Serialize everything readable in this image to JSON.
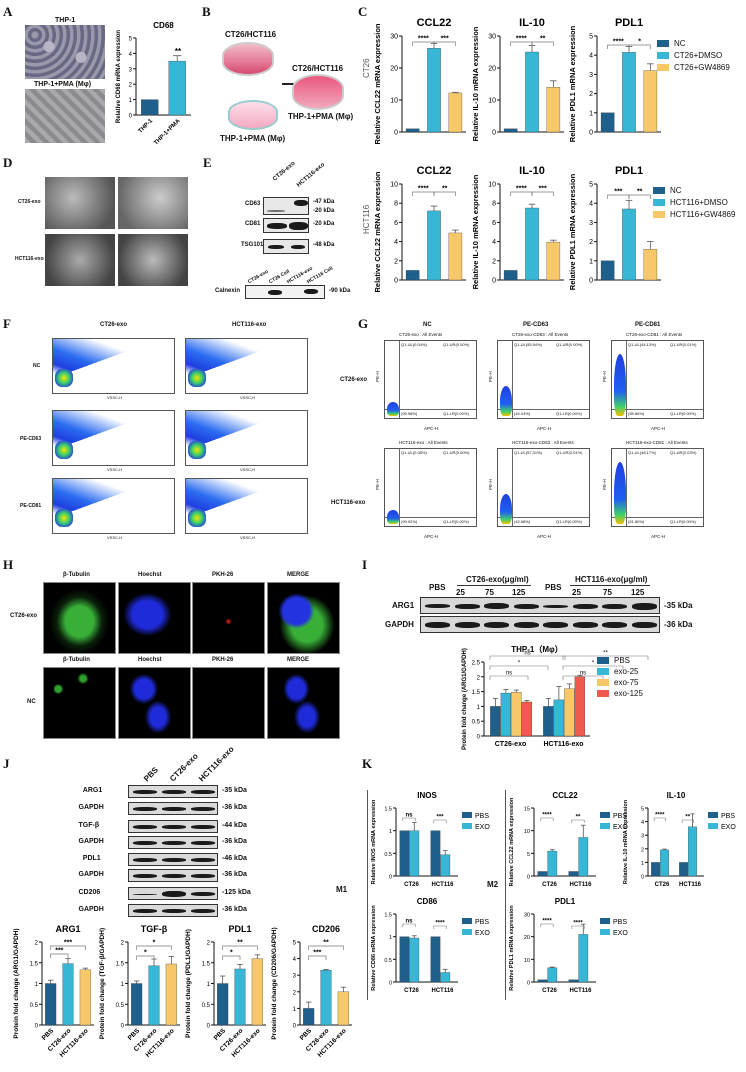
{
  "colors": {
    "nc": "#1f5f8b",
    "dmso": "#38b6d6",
    "gw": "#f7c86a",
    "exo125": "#ef5a4c",
    "ink": "#111111"
  },
  "panels": {
    "A": {
      "label": "A",
      "img_top": "THP-1",
      "img_bottom": "THP-1+PMA (Mφ)"
    },
    "B": {
      "label": "B",
      "dish_top": "CT26/HCT116",
      "dish_bottom": "THP-1+PMA (Mφ)",
      "dish_right_top": "CT26/HCT116",
      "dish_right_bottom": "THP-1+PMA (Mφ)"
    },
    "C": {
      "label": "C",
      "row1_label": "CT26",
      "row2_label": "HCT116"
    },
    "D": {
      "label": "D",
      "row1": "CT26-exo",
      "row2": "HCT116-exo"
    },
    "E": {
      "label": "E",
      "lanes_top": [
        "CT26-exo",
        "HCT116-exo"
      ],
      "rows_top": [
        {
          "name": "CD63",
          "kda": [
            "-47 kDa",
            "-20 kDa"
          ]
        },
        {
          "name": "CD81",
          "kda": [
            "-20 kDa"
          ]
        },
        {
          "name": "TSG101",
          "kda": [
            "-48 kDa"
          ]
        }
      ],
      "lanes_bottom": [
        "CT26-exo",
        "CT26 Cell",
        "HCT116-exo",
        "HCT116 Cell"
      ],
      "row_bottom": {
        "name": "Calnexin",
        "kda": "-90 kDa"
      }
    },
    "F": {
      "label": "F",
      "cols": [
        "CT26-exo",
        "HCT116-exo"
      ],
      "rows": [
        "NC",
        "PE-CD63",
        "PE-CD81"
      ],
      "xaxis": "VSSC-H"
    },
    "G": {
      "label": "G",
      "cols": [
        "NC",
        "PE-CD63",
        "PE-CD81"
      ],
      "rows": [
        "CT26-exo",
        "HCT116-exo"
      ],
      "subtitles": [
        [
          "CT26-exo : All Events",
          "CT26-exo-CD63 : All Events",
          "CT26-exo-CD81 : All Events"
        ],
        [
          "HCT116-exo : All Events",
          "HCT116-exo-CD63 : All Events",
          "HCT116-exo-CD81 : All Events"
        ]
      ],
      "ul": [
        [
          "Q1-UL(0.04%)",
          "Q1-UL(55.94%)",
          "Q1-UL(44.13%)"
        ],
        [
          "Q1-UL(0.08%)",
          "Q1-UL(57.31%)",
          "Q1-UL(48.17%)"
        ]
      ],
      "ur": [
        [
          "Q1-UR(0.00%)",
          "Q1-UR(0.00%)",
          "Q1-UR(0.01%)"
        ],
        [
          "Q1-UR(0.00%)",
          "Q1-UR(0.01%)",
          "Q1-UR(0.03%)"
        ]
      ],
      "ll": [
        [
          "(99.98%)",
          "(44.03%)",
          "(55.86%)"
        ],
        [
          "(99.92%)",
          "(42.68%)",
          "(51.80%)"
        ]
      ],
      "lr": [
        [
          "Q1-LR(0.00%)",
          "Q1-LR(0.00%)",
          "Q1-LR(0.00%)"
        ],
        [
          "Q1-LR(0.00%)",
          "Q1-LR(0.00%)",
          "Q1-LR(0.00%)"
        ]
      ],
      "xaxis": "APC-H",
      "yaxis": "PE-H"
    },
    "H": {
      "label": "H",
      "cols": [
        "β-Tubulin",
        "Hoechst",
        "PKH-26",
        "MERGE"
      ],
      "rows": [
        "CT26-exo",
        "NC"
      ]
    },
    "I": {
      "label": "I",
      "groups": [
        "PBS",
        "CT26-exo(μg/ml)",
        "PBS",
        "HCT116-exo(μg/ml)"
      ],
      "doses": [
        "25",
        "75",
        "125",
        "25",
        "75",
        "125"
      ],
      "rows": [
        {
          "name": "ARG1",
          "kda": "-35 kDa"
        },
        {
          "name": "GAPDH",
          "kda": "-36 kDa"
        }
      ],
      "chart_title": "THP-1（Mφ）"
    },
    "J": {
      "label": "J",
      "lanes": [
        "PBS",
        "CT26-exo",
        "HCT116-exo"
      ],
      "rows": [
        {
          "name": "ARG1",
          "kda": "-35 kDa"
        },
        {
          "name": "GAPDH",
          "kda": "-36 kDa"
        },
        {
          "name": "TGF-β",
          "kda": "-44 kDa"
        },
        {
          "name": "GAPDH",
          "kda": "-36 kDa"
        },
        {
          "name": "PDL1",
          "kda": "-46 kDa"
        },
        {
          "name": "GAPDH",
          "kda": "-36 kDa"
        },
        {
          "name": "CD206",
          "kda": "-125 kDa"
        },
        {
          "name": "GAPDH",
          "kda": "-36 kDa"
        }
      ]
    },
    "K": {
      "label": "K",
      "m1": "M1",
      "m2": "M2"
    }
  },
  "chart_data": [
    {
      "id": "A-CD68",
      "type": "bar",
      "title": "CD68",
      "categories": [
        "THP-1",
        "THP-1+PMA"
      ],
      "values": [
        1.0,
        3.5
      ],
      "errors": [
        0,
        0.35
      ],
      "ylabel": "Relative CD68 mRNA expression",
      "ylim": [
        0,
        5
      ],
      "yticks": [
        0,
        1,
        2,
        3,
        4,
        5
      ],
      "sig": [
        "**"
      ]
    },
    {
      "id": "C-CT26-CCL22",
      "type": "bar",
      "title": "CCL22",
      "categories": [
        "NC",
        "CT26+DMSO",
        "CT26+GW4869"
      ],
      "values": [
        1.0,
        26.2,
        12.2
      ],
      "errors": [
        0,
        1.5,
        0.2
      ],
      "ylabel": "Relative CCL22 mRNA expression",
      "ylim": [
        0,
        30
      ],
      "yticks": [
        0,
        10,
        20,
        30
      ],
      "sig": [
        "****",
        "***"
      ]
    },
    {
      "id": "C-CT26-IL10",
      "type": "bar",
      "title": "IL-10",
      "categories": [
        "NC",
        "CT26+DMSO",
        "CT26+GW4869"
      ],
      "values": [
        1.0,
        25.0,
        14.0
      ],
      "errors": [
        0,
        2.0,
        2.0
      ],
      "ylabel": "Relative IL-10 mRNA expression",
      "ylim": [
        0,
        30
      ],
      "yticks": [
        0,
        10,
        20,
        30
      ],
      "sig": [
        "****",
        "**"
      ]
    },
    {
      "id": "C-CT26-PDL1",
      "type": "bar",
      "title": "PDL1",
      "categories": [
        "NC",
        "CT26+DMSO",
        "CT26+GW4869"
      ],
      "values": [
        1.0,
        4.15,
        3.2
      ],
      "errors": [
        0,
        0.3,
        0.35
      ],
      "ylabel": "Relative PDL1 mRNA expression",
      "ylim": [
        0,
        5
      ],
      "yticks": [
        0,
        1,
        2,
        3,
        4,
        5
      ],
      "sig": [
        "****",
        "*"
      ],
      "legend": [
        "NC",
        "CT26+DMSO",
        "CT26+GW4869"
      ]
    },
    {
      "id": "C-HCT116-CCL22",
      "type": "bar",
      "title": "CCL22",
      "categories": [
        "NC",
        "HCT116+DMSO",
        "HCT116+GW4869"
      ],
      "values": [
        1.0,
        7.2,
        4.9
      ],
      "errors": [
        0,
        0.5,
        0.3
      ],
      "ylabel": "Relative CCL22 mRNA expression",
      "ylim": [
        0,
        10
      ],
      "yticks": [
        0,
        2,
        4,
        6,
        8,
        10
      ],
      "sig": [
        "****",
        "**"
      ]
    },
    {
      "id": "C-HCT116-IL10",
      "type": "bar",
      "title": "IL-10",
      "categories": [
        "NC",
        "HCT116+DMSO",
        "HCT116+GW4869"
      ],
      "values": [
        1.0,
        7.5,
        3.95
      ],
      "errors": [
        0,
        0.4,
        0.2
      ],
      "ylabel": "Relative IL-10 mRNA expression",
      "ylim": [
        0,
        10
      ],
      "yticks": [
        0,
        2,
        4,
        6,
        8,
        10
      ],
      "sig": [
        "****",
        "***"
      ]
    },
    {
      "id": "C-HCT116-PDL1",
      "type": "bar",
      "title": "PDL1",
      "categories": [
        "NC",
        "HCT116+DMSO",
        "HCT116+GW4869"
      ],
      "values": [
        1.0,
        3.7,
        1.6
      ],
      "errors": [
        0,
        0.45,
        0.4
      ],
      "ylabel": "Relative PDL1 mRNA expression",
      "ylim": [
        0,
        5
      ],
      "yticks": [
        0,
        1,
        2,
        3,
        4,
        5
      ],
      "sig": [
        "***",
        "**"
      ],
      "legend": [
        "NC",
        "HCT116+DMSO",
        "HCT116+GW4869"
      ]
    },
    {
      "id": "I-ARG1",
      "type": "bar",
      "title": "THP-1（Mφ）",
      "categories": [
        "CT26-exo",
        "HCT116-exo"
      ],
      "series": [
        {
          "name": "PBS",
          "values": [
            1.0,
            1.0
          ]
        },
        {
          "name": "exo-25",
          "values": [
            1.45,
            1.22
          ]
        },
        {
          "name": "exo-75",
          "values": [
            1.48,
            1.6
          ]
        },
        {
          "name": "exo-125",
          "values": [
            1.15,
            2.0
          ]
        }
      ],
      "errors": [
        [
          0.27,
          0.27
        ],
        [
          0.12,
          0.45
        ],
        [
          0.07,
          0.16
        ],
        [
          0.05,
          0.05
        ]
      ],
      "ylabel": "Protein fold change (ARG1/GAPDH)",
      "ylim": [
        0,
        2.5
      ],
      "yticks": [
        0,
        0.5,
        1.0,
        1.5,
        2.0,
        2.5
      ],
      "sig": [
        "ns",
        "*",
        "ns",
        "ns",
        "*",
        "**"
      ]
    },
    {
      "id": "J-ARG1",
      "type": "bar",
      "title": "ARG1",
      "categories": [
        "PBS",
        "CT26-exo",
        "HCT116-exo"
      ],
      "values": [
        1.0,
        1.48,
        1.33
      ],
      "errors": [
        0.08,
        0.12,
        0.04
      ],
      "ylabel": "Protein fold change (ARG1/GAPDH)",
      "ylim": [
        0,
        2.0
      ],
      "yticks": [
        0,
        0.5,
        1.0,
        1.5,
        2.0
      ],
      "sig": [
        "***",
        "***"
      ]
    },
    {
      "id": "J-TGFb",
      "type": "bar",
      "title": "TGF-β",
      "categories": [
        "PBS",
        "CT26-exo",
        "HCT116-exo"
      ],
      "values": [
        1.0,
        1.43,
        1.47
      ],
      "errors": [
        0.06,
        0.16,
        0.18
      ],
      "ylabel": "Protein fold change (TGF-β/GAPDH)",
      "ylim": [
        0,
        2.0
      ],
      "yticks": [
        0,
        0.5,
        1.0,
        1.5,
        2.0
      ],
      "sig": [
        "*",
        "*"
      ]
    },
    {
      "id": "J-PDL1",
      "type": "bar",
      "title": "PDL1",
      "categories": [
        "PBS",
        "CT26-exo",
        "HCT116-exo"
      ],
      "values": [
        1.0,
        1.35,
        1.6
      ],
      "errors": [
        0.18,
        0.11,
        0.09
      ],
      "ylabel": "Protein fold change (PDL1/GAPDH)",
      "ylim": [
        0,
        2.0
      ],
      "yticks": [
        0,
        0.5,
        1.0,
        1.5,
        2.0
      ],
      "sig": [
        "*",
        "**"
      ]
    },
    {
      "id": "J-CD206",
      "type": "bar",
      "title": "CD206",
      "categories": [
        "PBS",
        "CT26-exo",
        "HCT116-exo"
      ],
      "values": [
        1.0,
        3.3,
        2.0
      ],
      "errors": [
        0.38,
        0.05,
        0.28
      ],
      "ylabel": "Protein fold change (CD206/GAPDH)",
      "ylim": [
        0,
        5
      ],
      "yticks": [
        0,
        1,
        2,
        3,
        4,
        5
      ],
      "sig": [
        "***",
        "**"
      ]
    },
    {
      "id": "K-INOS",
      "type": "bar",
      "title": "INOS",
      "categories": [
        "CT26",
        "HCT116"
      ],
      "series": [
        {
          "name": "PBS",
          "values": [
            1.0,
            1.0
          ]
        },
        {
          "name": "EXO",
          "values": [
            1.0,
            0.47
          ]
        }
      ],
      "errors": [
        [
          0,
          0
        ],
        [
          0.18,
          0.09
        ]
      ],
      "ylabel": "Relative INOS mRNA expression",
      "ylim": [
        0,
        1.5
      ],
      "yticks": [
        0,
        0.5,
        1.0,
        1.5
      ],
      "sig": [
        "ns",
        "***"
      ]
    },
    {
      "id": "K-CD86",
      "type": "bar",
      "title": "CD86",
      "categories": [
        "CT26",
        "HCT116"
      ],
      "series": [
        {
          "name": "PBS",
          "values": [
            1.0,
            1.0
          ]
        },
        {
          "name": "EXO",
          "values": [
            0.97,
            0.21
          ]
        }
      ],
      "errors": [
        [
          0,
          0
        ],
        [
          0.05,
          0.07
        ]
      ],
      "ylabel": "Relative CD86 mRNA expression",
      "ylim": [
        0,
        1.5
      ],
      "yticks": [
        0,
        0.5,
        1.0,
        1.5
      ],
      "sig": [
        "ns",
        "****"
      ]
    },
    {
      "id": "K-CCL22",
      "type": "bar",
      "title": "CCL22",
      "categories": [
        "CT26",
        "HCT116"
      ],
      "series": [
        {
          "name": "PBS",
          "values": [
            1.0,
            1.0
          ]
        },
        {
          "name": "EXO",
          "values": [
            5.5,
            8.5
          ]
        }
      ],
      "errors": [
        [
          0,
          0
        ],
        [
          0.3,
          2.7
        ]
      ],
      "ylabel": "Relative CCL22 mRNA expression",
      "ylim": [
        0,
        15
      ],
      "yticks": [
        0,
        5,
        10,
        15
      ],
      "sig": [
        "****",
        "**"
      ]
    },
    {
      "id": "K-IL10",
      "type": "bar",
      "title": "IL-10",
      "categories": [
        "CT26",
        "HCT116"
      ],
      "series": [
        {
          "name": "PBS",
          "values": [
            1.0,
            1.0
          ]
        },
        {
          "name": "EXO",
          "values": [
            1.92,
            3.62
          ]
        }
      ],
      "errors": [
        [
          0,
          0
        ],
        [
          0.06,
          0.95
        ]
      ],
      "ylabel": "Relative IL-10 mRNA expression",
      "ylim": [
        0,
        5
      ],
      "yticks": [
        0,
        1,
        2,
        3,
        4,
        5
      ],
      "sig": [
        "****",
        "**"
      ]
    },
    {
      "id": "K-PDL1",
      "type": "bar",
      "title": "PDL1",
      "categories": [
        "CT26",
        "HCT116"
      ],
      "series": [
        {
          "name": "PBS",
          "values": [
            1.0,
            1.0
          ]
        },
        {
          "name": "EXO",
          "values": [
            6.3,
            21.0
          ]
        }
      ],
      "errors": [
        [
          0,
          0
        ],
        [
          0.3,
          4.5
        ]
      ],
      "ylabel": "Relative PDL1 mRNA expression",
      "ylim": [
        0,
        30
      ],
      "yticks": [
        0,
        10,
        20,
        30
      ],
      "sig": [
        "****",
        "****"
      ]
    }
  ]
}
